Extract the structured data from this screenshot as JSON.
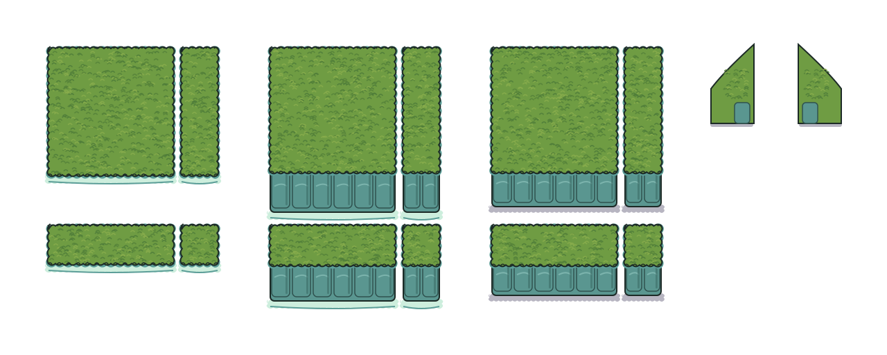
{
  "sheet": {
    "description_free": true,
    "background": "#ffffff",
    "palette": {
      "grass_base": "#6f9c43",
      "grass_light": "#88ad4c",
      "grass_dark": "#56833a",
      "grass_tuft_dark": "#4f7d3a",
      "outline": "#1c2a26",
      "rim_teal": "#5c9e98",
      "stone": "#5a9690",
      "stone_light": "#7cb4ad",
      "stone_dark": "#3c6c68",
      "seam": "#2f524f",
      "foam": "#cdeedd",
      "ground_shadow": "#b7b5c1"
    },
    "groups": [
      {
        "name": "flat-hedge-group",
        "variant": "flat",
        "tiles": [
          "large",
          "tall",
          "wide",
          "small"
        ]
      },
      {
        "name": "cliff-hedge-on-water-group",
        "variant": "cliff-water",
        "tiles": [
          "large",
          "tall",
          "wide",
          "small"
        ]
      },
      {
        "name": "cliff-hedge-on-ground-group",
        "variant": "cliff-ground",
        "tiles": [
          "large",
          "tall",
          "wide",
          "small"
        ]
      },
      {
        "name": "diagonal-edge-pieces",
        "variant": "diagonal",
        "tiles": [
          "left-slope",
          "right-slope"
        ]
      }
    ]
  }
}
